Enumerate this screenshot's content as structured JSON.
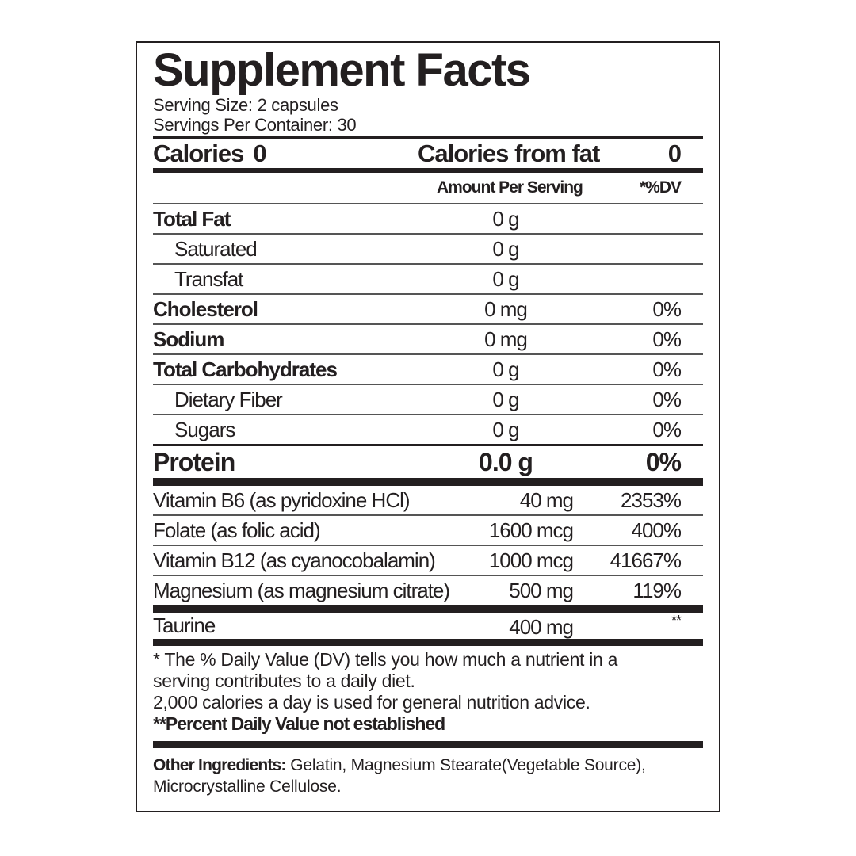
{
  "title": "Supplement Facts",
  "serving_size": "Serving Size: 2 capsules",
  "servings_per_container": "Servings Per Container: 30",
  "calories": {
    "label": "Calories",
    "value": "0",
    "fat_label": "Calories from fat",
    "fat_value": "0"
  },
  "header": {
    "amount": "Amount Per Serving",
    "dv": "*%DV"
  },
  "nutrients": [
    {
      "name": "Total Fat",
      "amount": "0 g",
      "dv": "",
      "bold": true,
      "indent": false
    },
    {
      "name": "Saturated",
      "amount": "0 g",
      "dv": "",
      "bold": false,
      "indent": true
    },
    {
      "name": "Transfat",
      "amount": "0 g",
      "dv": "",
      "bold": false,
      "indent": true
    },
    {
      "name": "Cholesterol",
      "amount": "0 mg",
      "dv": "0%",
      "bold": true,
      "indent": false
    },
    {
      "name": "Sodium",
      "amount": "0 mg",
      "dv": "0%",
      "bold": true,
      "indent": false
    },
    {
      "name": "Total Carbohydrates",
      "amount": "0 g",
      "dv": "0%",
      "bold": true,
      "indent": false
    },
    {
      "name": "Dietary Fiber",
      "amount": "0 g",
      "dv": "0%",
      "bold": false,
      "indent": true
    },
    {
      "name": "Sugars",
      "amount": "0 g",
      "dv": "0%",
      "bold": false,
      "indent": true
    }
  ],
  "protein": {
    "name": "Protein",
    "amount": "0.0 g",
    "dv": "0%"
  },
  "vitamins": [
    {
      "name": "Vitamin B6 (as pyridoxine HCl)",
      "amount": "40 mg",
      "dv": "2353%"
    },
    {
      "name": "Folate (as folic acid)",
      "amount": "1600 mcg",
      "dv": "400%"
    },
    {
      "name": "Vitamin B12 (as cyanocobalamin)",
      "amount": "1000 mcg",
      "dv": "41667%"
    },
    {
      "name": "Magnesium (as magnesium citrate)",
      "amount": "500 mg",
      "dv": "119%"
    }
  ],
  "taurine": {
    "name": "Taurine",
    "amount": "400 mg",
    "dv": "**"
  },
  "footnote": {
    "line1": "* The % Daily Value (DV) tells you how much a nutrient in a serving contributes to a daily diet.",
    "line2": "2,000 calories a day is used for general nutrition advice.",
    "line3": "**Percent Daily Value not established"
  },
  "other_ingredients": {
    "label": "Other Ingredients:",
    "text": " Gelatin, Magnesium Stearate(Vegetable Source), Microcrystalline Cellulose."
  }
}
